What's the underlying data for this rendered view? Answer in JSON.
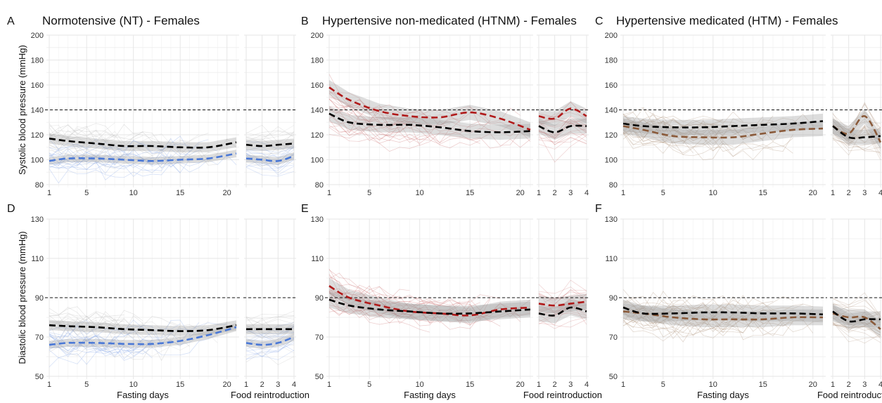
{
  "chart_data": [
    {
      "panel": "A",
      "type": "line",
      "title": "Normotensive (NT) - Females",
      "ylabel": "Systolic blood pressure (mmHg)",
      "xlabel_fasting": "",
      "xlabel_reintro": "",
      "ylim": [
        80,
        200
      ],
      "yticks": [
        80,
        100,
        120,
        140,
        160,
        180,
        200
      ],
      "threshold": 140,
      "fasting_xlim": [
        1,
        21
      ],
      "fasting_xticks": [
        1,
        5,
        10,
        15,
        20
      ],
      "reintro_xlim": [
        1,
        4
      ],
      "reintro_xticks": [],
      "raw_color": "#b4b4b4",
      "series": [
        {
          "color": "#000000",
          "band": 4,
          "fasting": {
            "x": [
              1,
              3,
              6,
              9,
              12,
              15,
              18,
              21
            ],
            "y": [
              117,
              115,
              113,
              111,
              111,
              110,
              110,
              114
            ]
          },
          "reintro": {
            "x": [
              1,
              2,
              3,
              4
            ],
            "y": [
              112,
              111,
              112,
              113
            ]
          }
        },
        {
          "color": "#4a78d6",
          "band": 3,
          "fasting": {
            "x": [
              1,
              3,
              6,
              9,
              12,
              15,
              18,
              21
            ],
            "y": [
              99,
              101,
              101,
              100,
              99,
              100,
              101,
              105
            ]
          },
          "reintro": {
            "x": [
              1,
              2,
              3,
              4
            ],
            "y": [
              101,
              100,
              99,
              103
            ]
          }
        }
      ]
    },
    {
      "panel": "B",
      "type": "line",
      "title": "Hypertensive non-medicated (HTNM) - Females",
      "ylabel": "",
      "xlabel_fasting": "",
      "xlabel_reintro": "",
      "ylim": [
        80,
        200
      ],
      "yticks": [
        80,
        100,
        120,
        140,
        160,
        180,
        200
      ],
      "threshold": 140,
      "fasting_xlim": [
        1,
        21
      ],
      "fasting_xticks": [
        1,
        5,
        10,
        15,
        20
      ],
      "reintro_xlim": [
        1,
        4
      ],
      "reintro_xticks": [
        1,
        2,
        3,
        4
      ],
      "raw_color": "#c96b6b",
      "series": [
        {
          "color": "#000000",
          "band": 6,
          "fasting": {
            "x": [
              1,
              3,
              6,
              9,
              12,
              15,
              18,
              21
            ],
            "y": [
              137,
              130,
              128,
              128,
              126,
              123,
              122,
              123
            ]
          },
          "reintro": {
            "x": [
              1,
              2,
              3,
              4
            ],
            "y": [
              127,
              122,
              127,
              127
            ]
          }
        },
        {
          "color": "#b01a1a",
          "band": 6,
          "fasting": {
            "x": [
              1,
              3,
              6,
              9,
              12,
              15,
              18,
              21
            ],
            "y": [
              158,
              148,
              139,
              135,
              134,
              138,
              133,
              124
            ]
          },
          "reintro": {
            "x": [
              1,
              2,
              3,
              4
            ],
            "y": [
              135,
              133,
              141,
              135
            ]
          }
        }
      ]
    },
    {
      "panel": "C",
      "type": "line",
      "title": "Hypertensive medicated (HTM) - Females",
      "ylabel": "",
      "xlabel_fasting": "",
      "xlabel_reintro": "",
      "ylim": [
        80,
        200
      ],
      "yticks": [
        80,
        100,
        120,
        140,
        160,
        180,
        200
      ],
      "threshold": 140,
      "fasting_xlim": [
        1,
        21
      ],
      "fasting_xticks": [
        1,
        5,
        10,
        15,
        20
      ],
      "reintro_xlim": [
        1,
        4
      ],
      "reintro_xticks": [
        1,
        2,
        3,
        4
      ],
      "raw_color": "#a88b74",
      "series": [
        {
          "color": "#000000",
          "band": 6,
          "fasting": {
            "x": [
              1,
              3,
              6,
              9,
              12,
              15,
              18,
              21
            ],
            "y": [
              129,
              127,
              126,
              126,
              127,
              128,
              129,
              131
            ]
          },
          "reintro": {
            "x": [
              1,
              2,
              3,
              4
            ],
            "y": [
              127,
              118,
              118,
              119
            ]
          }
        },
        {
          "color": "#8a5a3a",
          "band": 6,
          "fasting": {
            "x": [
              1,
              3,
              6,
              9,
              12,
              15,
              18,
              21
            ],
            "y": [
              127,
              124,
              119,
              118,
              118,
              121,
              124,
              125
            ]
          },
          "reintro": {
            "x": [
              1,
              2,
              3,
              4
            ],
            "y": [
              127,
              121,
              135,
              114
            ]
          }
        }
      ]
    },
    {
      "panel": "D",
      "type": "line",
      "title": "",
      "ylabel": "Diastolic blood pressure (mmHg)",
      "xlabel_fasting": "Fasting days",
      "xlabel_reintro": "Food reintroduction",
      "ylim": [
        50,
        130
      ],
      "yticks": [
        50,
        70,
        90,
        110,
        130
      ],
      "threshold": 90,
      "fasting_xlim": [
        1,
        21
      ],
      "fasting_xticks": [
        1,
        5,
        10,
        15,
        20
      ],
      "reintro_xlim": [
        1,
        4
      ],
      "reintro_xticks": [
        1,
        2,
        3,
        4
      ],
      "raw_color": "#b4b4b4",
      "series": [
        {
          "color": "#000000",
          "band": 2.5,
          "fasting": {
            "x": [
              1,
              3,
              6,
              9,
              12,
              15,
              18,
              21
            ],
            "y": [
              76,
              75.5,
              75,
              74,
              73.5,
              73,
              73.5,
              76
            ]
          },
          "reintro": {
            "x": [
              1,
              2,
              3,
              4
            ],
            "y": [
              74,
              74,
              74,
              74
            ]
          }
        },
        {
          "color": "#4a78d6",
          "band": 2,
          "fasting": {
            "x": [
              1,
              3,
              6,
              9,
              12,
              15,
              18,
              21
            ],
            "y": [
              66,
              67,
              67,
              66.5,
              66.5,
              68,
              71,
              75
            ]
          },
          "reintro": {
            "x": [
              1,
              2,
              3,
              4
            ],
            "y": [
              67,
              66,
              67,
              70
            ]
          }
        }
      ]
    },
    {
      "panel": "E",
      "type": "line",
      "title": "",
      "ylabel": "",
      "xlabel_fasting": "Fasting days",
      "xlabel_reintro": "Food reintroduction",
      "ylim": [
        50,
        130
      ],
      "yticks": [
        50,
        70,
        90,
        110,
        130
      ],
      "threshold": 90,
      "fasting_xlim": [
        1,
        21
      ],
      "fasting_xticks": [
        1,
        5,
        10,
        15,
        20
      ],
      "reintro_xlim": [
        1,
        4
      ],
      "reintro_xticks": [
        1,
        2,
        3,
        4
      ],
      "raw_color": "#c96b6b",
      "series": [
        {
          "color": "#000000",
          "band": 4,
          "fasting": {
            "x": [
              1,
              3,
              6,
              9,
              12,
              15,
              18,
              21
            ],
            "y": [
              89,
              86,
              84,
              83,
              82,
              82,
              83,
              84
            ]
          },
          "reintro": {
            "x": [
              1,
              2,
              3,
              4
            ],
            "y": [
              82,
              81,
              85,
              83
            ]
          }
        },
        {
          "color": "#b01a1a",
          "band": 4,
          "fasting": {
            "x": [
              1,
              3,
              6,
              9,
              12,
              15,
              18,
              21
            ],
            "y": [
              96,
              90,
              86,
              83,
              82,
              81,
              84,
              85
            ]
          },
          "reintro": {
            "x": [
              1,
              2,
              3,
              4
            ],
            "y": [
              87,
              86,
              87,
              88
            ]
          }
        }
      ]
    },
    {
      "panel": "F",
      "type": "line",
      "title": "",
      "ylabel": "",
      "xlabel_fasting": "Fasting days",
      "xlabel_reintro": "Food reintroduction",
      "ylim": [
        50,
        130
      ],
      "yticks": [
        50,
        70,
        90,
        110,
        130
      ],
      "threshold": 90,
      "fasting_xlim": [
        1,
        21
      ],
      "fasting_xticks": [
        1,
        5,
        10,
        15,
        20
      ],
      "reintro_xlim": [
        1,
        4
      ],
      "reintro_xticks": [
        1,
        2,
        3,
        4
      ],
      "raw_color": "#a88b74",
      "series": [
        {
          "color": "#000000",
          "band": 4,
          "fasting": {
            "x": [
              1,
              3,
              6,
              9,
              12,
              15,
              18,
              21
            ],
            "y": [
              85,
              82,
              82,
              82.5,
              82.5,
              82,
              82,
              81.5
            ]
          },
          "reintro": {
            "x": [
              1,
              2,
              3,
              4
            ],
            "y": [
              83,
              78,
              79,
              79
            ]
          }
        },
        {
          "color": "#8a5a3a",
          "band": 4,
          "fasting": {
            "x": [
              1,
              3,
              6,
              9,
              12,
              15,
              18,
              21
            ],
            "y": [
              83,
              82,
              80,
              79,
              79,
              79,
              80,
              80
            ]
          },
          "reintro": {
            "x": [
              1,
              2,
              3,
              4
            ],
            "y": [
              82,
              80,
              80,
              74
            ]
          }
        }
      ]
    }
  ]
}
